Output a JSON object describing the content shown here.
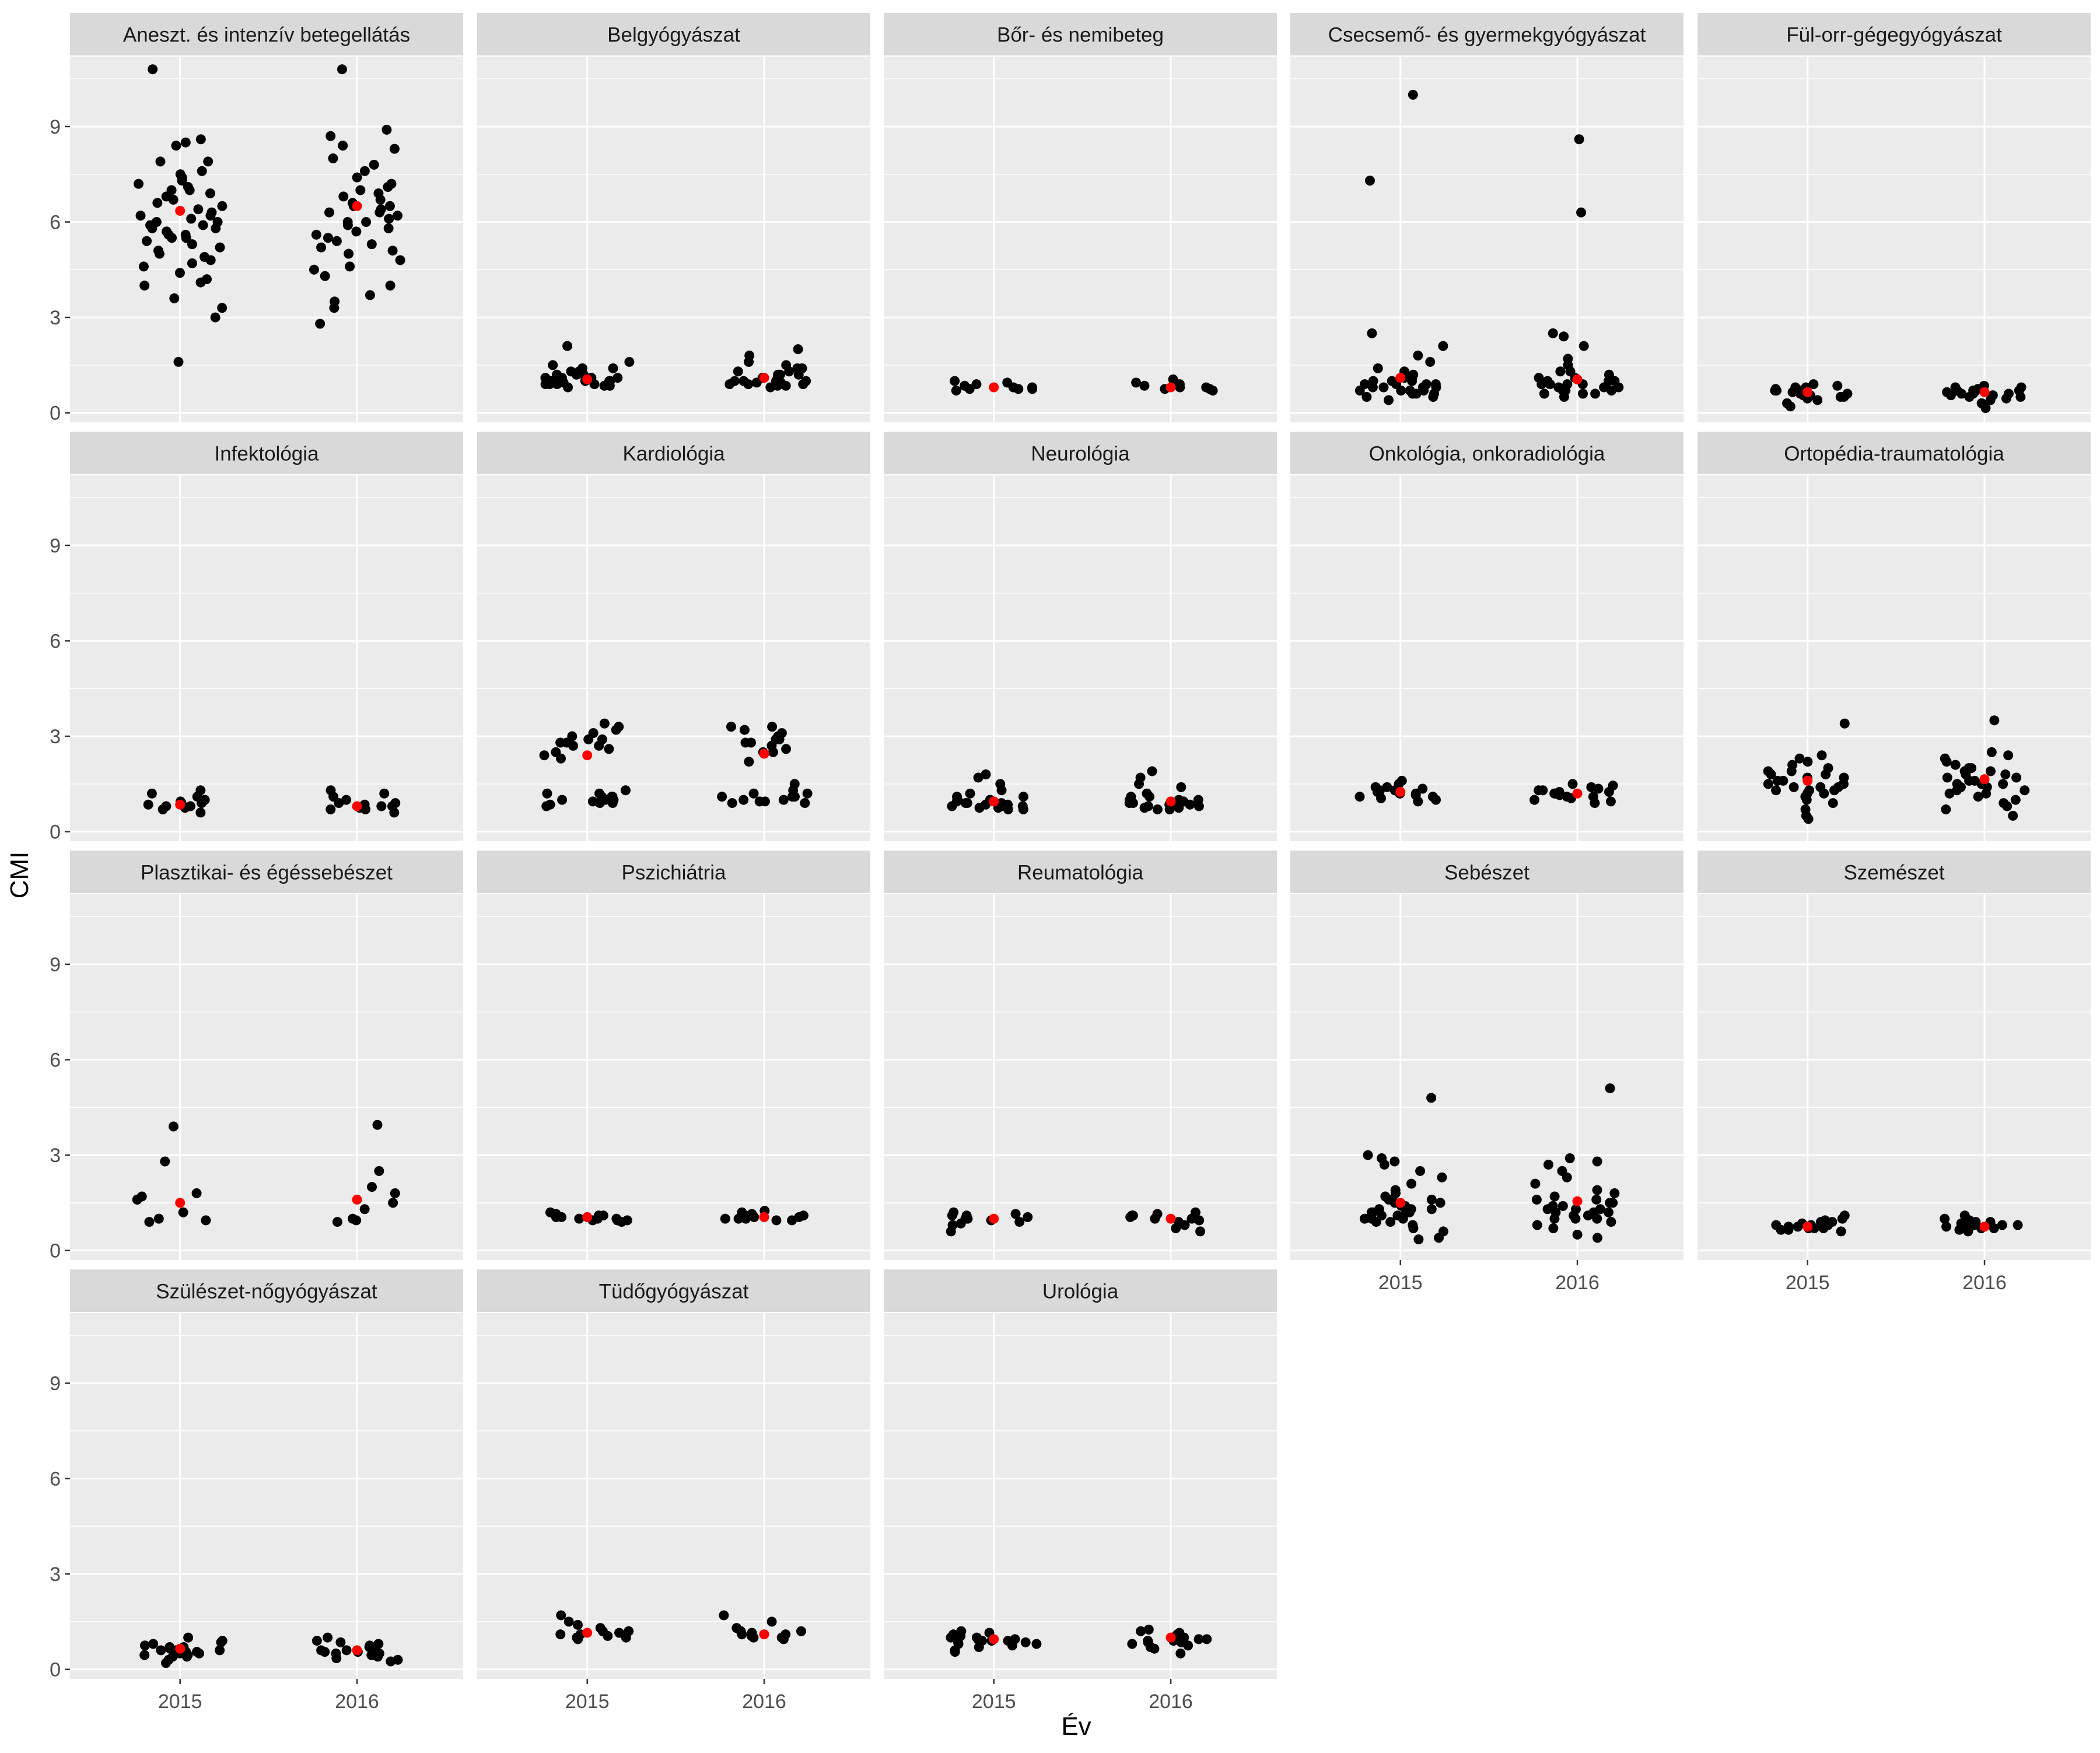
{
  "chart_data": {
    "type": "scatter",
    "xlabel": "Év",
    "ylabel": "CMI",
    "x_categories": [
      "2015",
      "2016"
    ],
    "ylim": [
      -0.3,
      11.2
    ],
    "y_ticks": [
      0,
      3,
      6,
      9
    ],
    "grid": true,
    "colors": {
      "points": "#000000",
      "mean": "#ff0000",
      "panel_bg": "#ebebeb",
      "strip_bg": "#d9d9d9",
      "grid": "#ffffff"
    },
    "panels": [
      {
        "title": "Aneszt. és intenzív betegellátás",
        "y2015": [
          10.8,
          8.6,
          8.5,
          8.4,
          7.9,
          7.9,
          7.6,
          7.5,
          7.4,
          7.3,
          7.2,
          7.1,
          7.0,
          7.0,
          6.9,
          6.8,
          6.7,
          6.6,
          6.5,
          6.4,
          6.3,
          6.2,
          6.2,
          6.1,
          6.0,
          6.0,
          5.9,
          5.9,
          5.8,
          5.8,
          5.7,
          5.6,
          5.6,
          5.5,
          5.5,
          5.4,
          5.3,
          5.2,
          5.1,
          5.0,
          4.9,
          4.8,
          4.7,
          4.6,
          4.4,
          4.2,
          4.1,
          4.0,
          3.6,
          3.3,
          3.0,
          1.6
        ],
        "y2016": [
          10.8,
          8.9,
          8.7,
          8.4,
          8.3,
          8.0,
          7.8,
          7.6,
          7.4,
          7.2,
          7.1,
          7.0,
          6.9,
          6.8,
          6.7,
          6.6,
          6.5,
          6.5,
          6.4,
          6.3,
          6.3,
          6.2,
          6.1,
          6.0,
          6.0,
          5.9,
          5.8,
          5.7,
          5.6,
          5.5,
          5.4,
          5.3,
          5.2,
          5.1,
          5.0,
          4.8,
          4.6,
          4.5,
          4.3,
          4.0,
          3.7,
          3.5,
          3.3,
          2.8
        ],
        "mean2015": 6.35,
        "mean2016": 6.5
      },
      {
        "title": "Belgyógyászat",
        "y2015": [
          2.1,
          1.6,
          1.5,
          1.4,
          1.4,
          1.3,
          1.3,
          1.2,
          1.2,
          1.2,
          1.1,
          1.1,
          1.1,
          1.1,
          1.0,
          1.0,
          1.0,
          1.0,
          1.0,
          0.95,
          0.95,
          0.9,
          0.9,
          0.9,
          0.9,
          0.85,
          0.85,
          0.8
        ],
        "y2016": [
          2.0,
          1.8,
          1.6,
          1.5,
          1.4,
          1.4,
          1.3,
          1.3,
          1.2,
          1.2,
          1.2,
          1.1,
          1.1,
          1.1,
          1.0,
          1.0,
          1.0,
          1.0,
          0.95,
          0.95,
          0.9,
          0.9,
          0.9,
          0.85,
          0.85,
          0.8
        ],
        "mean2015": 1.05,
        "mean2016": 1.1
      },
      {
        "title": "Bőr- és nemibeteg",
        "y2015": [
          1.0,
          0.95,
          0.9,
          0.85,
          0.8,
          0.8,
          0.75,
          0.75,
          0.75,
          0.7
        ],
        "y2016": [
          1.05,
          0.95,
          0.9,
          0.85,
          0.8,
          0.8,
          0.75,
          0.75,
          0.7
        ],
        "mean2015": 0.8,
        "mean2016": 0.8
      },
      {
        "title": "Csecsemő- és gyermekgyógyászat",
        "y2015": [
          10.0,
          7.3,
          2.5,
          2.1,
          1.8,
          1.6,
          1.4,
          1.3,
          1.2,
          1.1,
          1.1,
          1.0,
          1.0,
          1.0,
          0.9,
          0.9,
          0.9,
          0.9,
          0.8,
          0.8,
          0.8,
          0.8,
          0.7,
          0.7,
          0.7,
          0.7,
          0.6,
          0.6,
          0.6,
          0.5,
          0.5,
          0.4
        ],
        "y2016": [
          8.6,
          6.3,
          2.5,
          2.4,
          2.1,
          1.7,
          1.5,
          1.3,
          1.3,
          1.2,
          1.1,
          1.1,
          1.0,
          1.0,
          1.0,
          0.9,
          0.9,
          0.9,
          0.9,
          0.8,
          0.8,
          0.8,
          0.7,
          0.7,
          0.7,
          0.6,
          0.6,
          0.6,
          0.5
        ],
        "mean2015": 1.1,
        "mean2016": 1.05
      },
      {
        "title": "Fül-orr-gégegyógyászat",
        "y2015": [
          0.9,
          0.85,
          0.8,
          0.8,
          0.75,
          0.7,
          0.7,
          0.7,
          0.65,
          0.65,
          0.6,
          0.6,
          0.6,
          0.55,
          0.55,
          0.5,
          0.5,
          0.45,
          0.4,
          0.3,
          0.2
        ],
        "y2016": [
          0.85,
          0.8,
          0.8,
          0.75,
          0.7,
          0.7,
          0.7,
          0.65,
          0.65,
          0.6,
          0.6,
          0.6,
          0.55,
          0.55,
          0.5,
          0.5,
          0.45,
          0.4,
          0.3,
          0.15
        ],
        "mean2015": 0.65,
        "mean2016": 0.65
      },
      {
        "title": "Infektológia",
        "y2015": [
          1.3,
          1.2,
          1.1,
          1.0,
          0.95,
          0.9,
          0.9,
          0.85,
          0.8,
          0.8,
          0.75,
          0.7,
          0.6
        ],
        "y2016": [
          1.3,
          1.2,
          1.1,
          1.0,
          0.9,
          0.9,
          0.85,
          0.8,
          0.8,
          0.75,
          0.7,
          0.7,
          0.6
        ],
        "mean2015": 0.85,
        "mean2016": 0.8
      },
      {
        "title": "Kardiológia",
        "y2015": [
          3.4,
          3.3,
          3.2,
          3.1,
          3.0,
          2.9,
          2.9,
          2.8,
          2.8,
          2.7,
          2.7,
          2.6,
          2.5,
          2.4,
          2.3,
          1.3,
          1.2,
          1.2,
          1.1,
          1.1,
          1.1,
          1.0,
          1.0,
          1.0,
          0.95,
          0.9,
          0.9,
          0.85,
          0.8
        ],
        "y2016": [
          3.3,
          3.3,
          3.2,
          3.1,
          3.0,
          2.9,
          2.9,
          2.8,
          2.8,
          2.7,
          2.6,
          2.5,
          2.5,
          2.2,
          1.5,
          1.3,
          1.2,
          1.2,
          1.1,
          1.1,
          1.1,
          1.0,
          1.0,
          0.95,
          0.95,
          0.9,
          0.9
        ],
        "mean2015": 2.4,
        "mean2016": 2.45
      },
      {
        "title": "Neurológia",
        "y2015": [
          1.8,
          1.7,
          1.5,
          1.3,
          1.2,
          1.1,
          1.1,
          1.0,
          1.0,
          1.0,
          0.95,
          0.9,
          0.9,
          0.9,
          0.85,
          0.85,
          0.8,
          0.8,
          0.8,
          0.75,
          0.75,
          0.7,
          0.7
        ],
        "y2016": [
          1.9,
          1.7,
          1.5,
          1.4,
          1.2,
          1.1,
          1.1,
          1.0,
          1.0,
          1.0,
          0.95,
          0.9,
          0.9,
          0.9,
          0.85,
          0.85,
          0.8,
          0.8,
          0.75,
          0.75,
          0.7,
          0.7
        ],
        "mean2015": 0.95,
        "mean2016": 0.95
      },
      {
        "title": "Onkológia, onkoradiológia",
        "y2015": [
          1.6,
          1.5,
          1.4,
          1.4,
          1.35,
          1.3,
          1.3,
          1.25,
          1.25,
          1.2,
          1.2,
          1.2,
          1.15,
          1.1,
          1.1,
          1.05,
          1.0,
          0.95
        ],
        "y2016": [
          1.5,
          1.45,
          1.4,
          1.35,
          1.3,
          1.3,
          1.25,
          1.25,
          1.2,
          1.2,
          1.15,
          1.1,
          1.1,
          1.05,
          1.0,
          0.95,
          0.9
        ],
        "mean2015": 1.25,
        "mean2016": 1.2
      },
      {
        "title": "Ortopédia-traumatológia",
        "y2015": [
          3.4,
          2.4,
          2.3,
          2.2,
          2.1,
          2.0,
          1.9,
          1.9,
          1.8,
          1.8,
          1.7,
          1.7,
          1.6,
          1.6,
          1.5,
          1.5,
          1.5,
          1.4,
          1.4,
          1.4,
          1.3,
          1.3,
          1.3,
          1.2,
          1.2,
          1.1,
          1.0,
          0.9,
          0.7,
          0.5,
          0.4
        ],
        "y2016": [
          3.5,
          2.5,
          2.4,
          2.3,
          2.2,
          2.1,
          2.0,
          2.0,
          1.9,
          1.9,
          1.8,
          1.8,
          1.7,
          1.7,
          1.6,
          1.6,
          1.5,
          1.5,
          1.5,
          1.4,
          1.4,
          1.3,
          1.3,
          1.2,
          1.2,
          1.1,
          1.0,
          0.9,
          0.8,
          0.7,
          0.5
        ],
        "mean2015": 1.6,
        "mean2016": 1.65
      },
      {
        "title": "Plasztikai- és égéssebészet",
        "y2015": [
          3.9,
          2.8,
          1.8,
          1.7,
          1.6,
          1.2,
          1.0,
          0.95,
          0.9
        ],
        "y2016": [
          3.95,
          2.5,
          2.0,
          1.8,
          1.5,
          1.3,
          1.0,
          0.95,
          0.9
        ],
        "mean2015": 1.5,
        "mean2016": 1.6
      },
      {
        "title": "Pszichiátria",
        "y2015": [
          1.2,
          1.15,
          1.1,
          1.1,
          1.05,
          1.05,
          1.0,
          1.0,
          1.0,
          0.95,
          0.95,
          0.95,
          0.9
        ],
        "y2016": [
          1.25,
          1.2,
          1.15,
          1.1,
          1.1,
          1.05,
          1.05,
          1.0,
          1.0,
          1.0,
          0.95,
          0.95
        ],
        "mean2015": 1.05,
        "mean2016": 1.05
      },
      {
        "title": "Reumatológia",
        "y2015": [
          1.2,
          1.15,
          1.1,
          1.1,
          1.05,
          1.0,
          1.0,
          0.95,
          0.9,
          0.85,
          0.8,
          0.6
        ],
        "y2016": [
          1.2,
          1.15,
          1.1,
          1.1,
          1.05,
          1.0,
          1.0,
          0.95,
          0.9,
          0.8,
          0.7,
          0.6
        ],
        "mean2015": 1.0,
        "mean2016": 1.0
      },
      {
        "title": "Sebészet",
        "y2015": [
          4.8,
          3.0,
          2.9,
          2.8,
          2.7,
          2.5,
          2.3,
          2.1,
          1.9,
          1.8,
          1.7,
          1.6,
          1.6,
          1.5,
          1.5,
          1.4,
          1.4,
          1.3,
          1.3,
          1.3,
          1.2,
          1.2,
          1.2,
          1.1,
          1.1,
          1.1,
          1.0,
          1.0,
          1.0,
          0.9,
          0.9,
          0.8,
          0.7,
          0.6,
          0.4,
          0.35
        ],
        "y2016": [
          5.1,
          2.9,
          2.8,
          2.7,
          2.5,
          2.3,
          2.1,
          1.9,
          1.8,
          1.7,
          1.6,
          1.6,
          1.5,
          1.5,
          1.4,
          1.4,
          1.3,
          1.3,
          1.3,
          1.2,
          1.2,
          1.2,
          1.1,
          1.1,
          1.0,
          1.0,
          1.0,
          0.9,
          0.8,
          0.7,
          0.5,
          0.4
        ],
        "mean2015": 1.5,
        "mean2016": 1.55
      },
      {
        "title": "Szemészet",
        "y2015": [
          1.1,
          1.0,
          0.95,
          0.9,
          0.9,
          0.85,
          0.85,
          0.8,
          0.8,
          0.8,
          0.75,
          0.75,
          0.7,
          0.7,
          0.7,
          0.65,
          0.65,
          0.6
        ],
        "y2016": [
          1.1,
          1.0,
          0.95,
          0.9,
          0.9,
          0.85,
          0.85,
          0.8,
          0.8,
          0.8,
          0.75,
          0.75,
          0.7,
          0.7,
          0.65,
          0.65,
          0.6
        ],
        "mean2015": 0.75,
        "mean2016": 0.75
      },
      {
        "title": "Szülészet-nőgyógyászat",
        "y2015": [
          1.0,
          0.9,
          0.85,
          0.8,
          0.75,
          0.7,
          0.7,
          0.65,
          0.6,
          0.6,
          0.6,
          0.55,
          0.55,
          0.5,
          0.5,
          0.45,
          0.45,
          0.4,
          0.4,
          0.3,
          0.2
        ],
        "y2016": [
          1.0,
          0.9,
          0.85,
          0.8,
          0.75,
          0.7,
          0.7,
          0.65,
          0.6,
          0.6,
          0.55,
          0.55,
          0.5,
          0.5,
          0.45,
          0.45,
          0.4,
          0.35,
          0.3,
          0.25
        ],
        "mean2015": 0.65,
        "mean2016": 0.6
      },
      {
        "title": "Tüdőgyógyászat",
        "y2015": [
          1.7,
          1.5,
          1.4,
          1.3,
          1.2,
          1.2,
          1.15,
          1.1,
          1.1,
          1.05,
          1.0,
          1.0,
          0.95
        ],
        "y2016": [
          1.7,
          1.5,
          1.3,
          1.2,
          1.2,
          1.15,
          1.1,
          1.1,
          1.05,
          1.0,
          1.0,
          0.95
        ],
        "mean2015": 1.15,
        "mean2016": 1.1
      },
      {
        "title": "Urológia",
        "y2015": [
          1.2,
          1.15,
          1.1,
          1.05,
          1.0,
          1.0,
          0.95,
          0.95,
          0.9,
          0.9,
          0.9,
          0.85,
          0.85,
          0.8,
          0.8,
          0.75,
          0.7,
          0.6,
          0.55
        ],
        "y2016": [
          1.25,
          1.2,
          1.15,
          1.1,
          1.05,
          1.0,
          1.0,
          0.95,
          0.95,
          0.9,
          0.9,
          0.85,
          0.85,
          0.8,
          0.75,
          0.7,
          0.65,
          0.5
        ],
        "mean2015": 0.95,
        "mean2016": 1.0
      }
    ]
  }
}
